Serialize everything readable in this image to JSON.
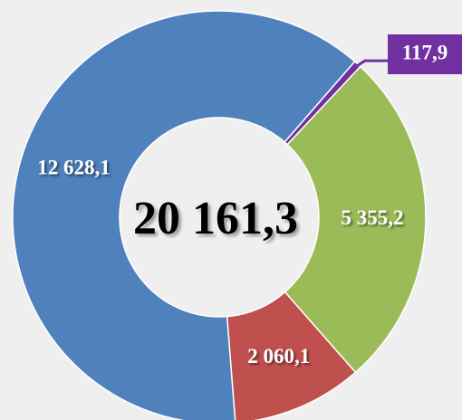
{
  "chart_data": {
    "type": "donut",
    "values": [
      117.9,
      5355.2,
      2060.1,
      12628.1
    ],
    "value_labels": [
      "117,9",
      "5 355,2",
      "2 060,1",
      "12 628,1"
    ],
    "colors": [
      "#7030a0",
      "#9bbb59",
      "#c0504d",
      "#4f81bd"
    ],
    "center_text": "20 161,3"
  }
}
